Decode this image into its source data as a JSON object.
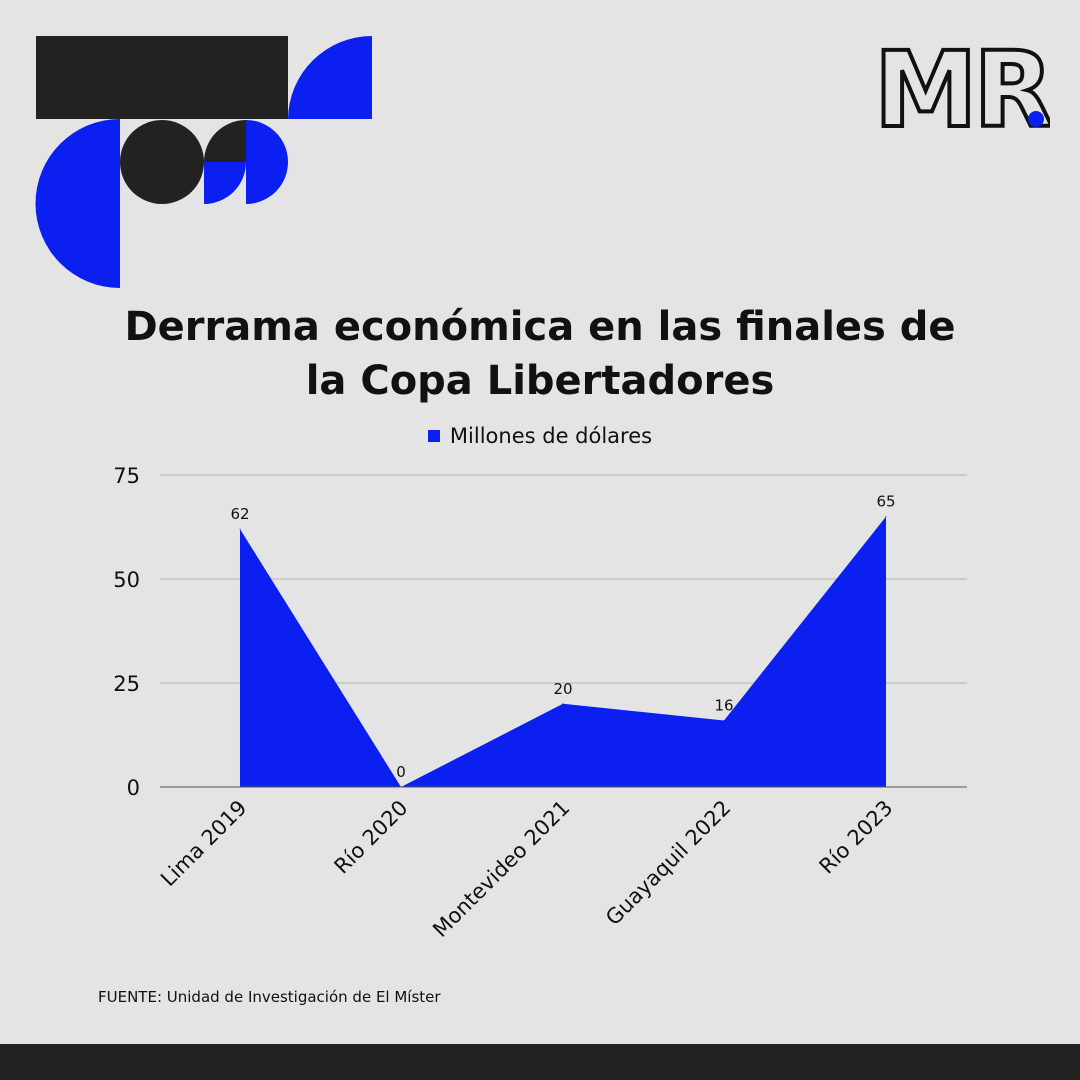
{
  "header": {
    "brand": "MR."
  },
  "chart_data": {
    "type": "area",
    "title": "Derrama económica en las finales de la Copa Libertadores",
    "title_lines": [
      "Derrama económica en las finales de",
      "la Copa Libertadores"
    ],
    "categories": [
      "Lima 2019",
      "Río 2020",
      "Montevideo 2021",
      "Guayaquil 2022",
      "Río 2023"
    ],
    "series": [
      {
        "name": "Millones de dólares",
        "values": [
          62,
          0,
          20,
          16,
          65
        ]
      }
    ],
    "ylim": [
      0,
      75
    ],
    "yticks": [
      0,
      25,
      50,
      75
    ],
    "xlabel": "",
    "ylabel": "",
    "grid": true,
    "legend": "top-center",
    "colors": {
      "series": "#0a1ff0",
      "grid": "#b5b5b5",
      "axis": "#555555"
    }
  },
  "footer": {
    "source": "FUENTE: Unidad de Investigación de El Míster"
  }
}
